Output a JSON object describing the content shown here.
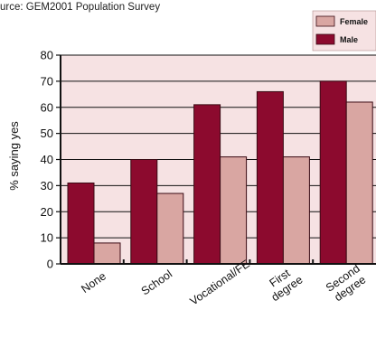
{
  "source_note": "urce: GEM2001 Population Survey",
  "chart_data": {
    "type": "bar",
    "categories": [
      "None",
      "School",
      "Vocational/FE",
      "First\ndegree",
      "Second\ndegree"
    ],
    "series": [
      {
        "name": "Male",
        "values": [
          31,
          40,
          61,
          66,
          70
        ],
        "color": "#8c0a2e"
      },
      {
        "name": "Female",
        "values": [
          8,
          27,
          41,
          41,
          62
        ],
        "color": "#d9a6a2"
      }
    ],
    "ylabel": "% saying yes",
    "xlabel": "",
    "ylim": [
      0,
      80
    ],
    "yticks": [
      0,
      10,
      20,
      30,
      40,
      50,
      60,
      70,
      80
    ],
    "grid": true,
    "plot_background": "#f6e2e3",
    "legend": {
      "placement": "top-right",
      "order": [
        "Female",
        "Male"
      ],
      "background": "#f6e2e3"
    }
  }
}
